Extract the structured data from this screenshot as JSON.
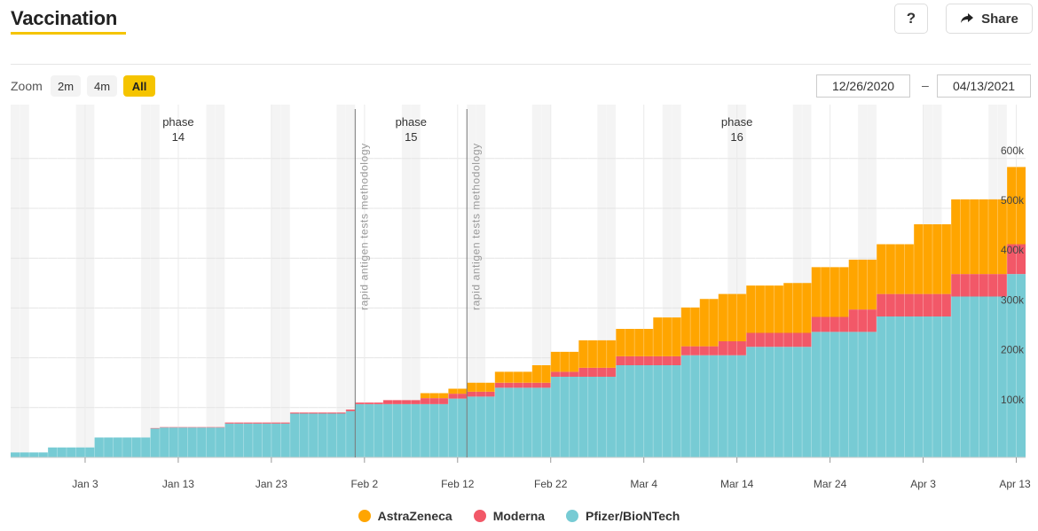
{
  "header": {
    "title": "Vaccination",
    "help_label": "?",
    "share_label": "Share"
  },
  "controls": {
    "zoom_label": "Zoom",
    "zoom_options": [
      "2m",
      "4m",
      "All"
    ],
    "zoom_selected": "All",
    "date_from": "12/26/2020",
    "date_separator": "–",
    "date_to": "04/13/2021"
  },
  "colors": {
    "astrazeneca": "#ffa500",
    "moderna": "#f25868",
    "pfizer": "#77cbd4",
    "accent": "#f5c400"
  },
  "chart_data": {
    "type": "area",
    "stacked": true,
    "step": true,
    "x_start": "2020-12-26",
    "x_end": "2021-04-13",
    "x_ticks": [
      {
        "date": "2021-01-03",
        "label": "Jan 3"
      },
      {
        "date": "2021-01-13",
        "label": "Jan 13"
      },
      {
        "date": "2021-01-23",
        "label": "Jan 23"
      },
      {
        "date": "2021-02-02",
        "label": "Feb 2"
      },
      {
        "date": "2021-02-12",
        "label": "Feb 12"
      },
      {
        "date": "2021-02-22",
        "label": "Feb 22"
      },
      {
        "date": "2021-03-04",
        "label": "Mar 4"
      },
      {
        "date": "2021-03-14",
        "label": "Mar 14"
      },
      {
        "date": "2021-03-24",
        "label": "Mar 24"
      },
      {
        "date": "2021-04-03",
        "label": "Apr 3"
      },
      {
        "date": "2021-04-13",
        "label": "Apr 13"
      }
    ],
    "y_ticks": [
      {
        "value": 100000,
        "label": "100k"
      },
      {
        "value": 200000,
        "label": "200k"
      },
      {
        "value": 300000,
        "label": "300k"
      },
      {
        "value": 400000,
        "label": "400k"
      },
      {
        "value": 500000,
        "label": "500k"
      },
      {
        "value": 600000,
        "label": "600k"
      }
    ],
    "ylim": [
      0,
      700000
    ],
    "grid": true,
    "legend_position": "bottom",
    "phases": [
      {
        "label": "phase",
        "number": "14",
        "center_date": "2021-01-13"
      },
      {
        "label": "phase",
        "number": "15",
        "center_date": "2021-02-07"
      },
      {
        "label": "phase",
        "number": "16",
        "center_date": "2021-03-14"
      }
    ],
    "markers": [
      {
        "date": "2021-02-01",
        "label": "rapid antigen tests methodology"
      },
      {
        "date": "2021-02-13",
        "label": "rapid antigen tests methodology"
      }
    ],
    "series": [
      {
        "name": "Pfizer/BioNTech",
        "color": "#77cbd4",
        "points": [
          {
            "date": "2020-12-26",
            "value": 10000
          },
          {
            "date": "2020-12-30",
            "value": 20000
          },
          {
            "date": "2021-01-04",
            "value": 40000
          },
          {
            "date": "2021-01-10",
            "value": 58000
          },
          {
            "date": "2021-01-11",
            "value": 60000
          },
          {
            "date": "2021-01-18",
            "value": 68000
          },
          {
            "date": "2021-01-25",
            "value": 88000
          },
          {
            "date": "2021-01-31",
            "value": 93000
          },
          {
            "date": "2021-02-01",
            "value": 107000
          },
          {
            "date": "2021-02-04",
            "value": 107000
          },
          {
            "date": "2021-02-08",
            "value": 107000
          },
          {
            "date": "2021-02-11",
            "value": 118000
          },
          {
            "date": "2021-02-13",
            "value": 122000
          },
          {
            "date": "2021-02-16",
            "value": 140000
          },
          {
            "date": "2021-02-20",
            "value": 140000
          },
          {
            "date": "2021-02-22",
            "value": 162000
          },
          {
            "date": "2021-02-25",
            "value": 162000
          },
          {
            "date": "2021-03-01",
            "value": 185000
          },
          {
            "date": "2021-03-05",
            "value": 185000
          },
          {
            "date": "2021-03-08",
            "value": 205000
          },
          {
            "date": "2021-03-12",
            "value": 205000
          },
          {
            "date": "2021-03-15",
            "value": 222000
          },
          {
            "date": "2021-03-19",
            "value": 222000
          },
          {
            "date": "2021-03-22",
            "value": 252000
          },
          {
            "date": "2021-03-26",
            "value": 252000
          },
          {
            "date": "2021-03-29",
            "value": 283000
          },
          {
            "date": "2021-04-02",
            "value": 283000
          },
          {
            "date": "2021-04-06",
            "value": 323000
          },
          {
            "date": "2021-04-12",
            "value": 368000
          }
        ]
      },
      {
        "name": "Moderna",
        "color": "#f25868",
        "points": [
          {
            "date": "2020-12-26",
            "value": 0
          },
          {
            "date": "2021-01-10",
            "value": 1000
          },
          {
            "date": "2021-01-18",
            "value": 2000
          },
          {
            "date": "2021-01-25",
            "value": 2000
          },
          {
            "date": "2021-01-31",
            "value": 3000
          },
          {
            "date": "2021-02-01",
            "value": 3000
          },
          {
            "date": "2021-02-04",
            "value": 8000
          },
          {
            "date": "2021-02-08",
            "value": 12000
          },
          {
            "date": "2021-02-11",
            "value": 10000
          },
          {
            "date": "2021-02-13",
            "value": 10000
          },
          {
            "date": "2021-02-16",
            "value": 10000
          },
          {
            "date": "2021-02-20",
            "value": 10000
          },
          {
            "date": "2021-02-22",
            "value": 10000
          },
          {
            "date": "2021-02-25",
            "value": 18000
          },
          {
            "date": "2021-03-01",
            "value": 18000
          },
          {
            "date": "2021-03-05",
            "value": 18000
          },
          {
            "date": "2021-03-08",
            "value": 18000
          },
          {
            "date": "2021-03-12",
            "value": 28000
          },
          {
            "date": "2021-03-15",
            "value": 28000
          },
          {
            "date": "2021-03-19",
            "value": 28000
          },
          {
            "date": "2021-03-22",
            "value": 30000
          },
          {
            "date": "2021-03-26",
            "value": 45000
          },
          {
            "date": "2021-03-29",
            "value": 45000
          },
          {
            "date": "2021-04-02",
            "value": 45000
          },
          {
            "date": "2021-04-06",
            "value": 45000
          },
          {
            "date": "2021-04-12",
            "value": 60000
          }
        ]
      },
      {
        "name": "AstraZeneca",
        "color": "#ffa500",
        "points": [
          {
            "date": "2020-12-26",
            "value": 0
          },
          {
            "date": "2021-02-04",
            "value": 0
          },
          {
            "date": "2021-02-08",
            "value": 10000
          },
          {
            "date": "2021-02-11",
            "value": 10000
          },
          {
            "date": "2021-02-13",
            "value": 18000
          },
          {
            "date": "2021-02-16",
            "value": 22000
          },
          {
            "date": "2021-02-20",
            "value": 35000
          },
          {
            "date": "2021-02-22",
            "value": 40000
          },
          {
            "date": "2021-02-25",
            "value": 55000
          },
          {
            "date": "2021-03-01",
            "value": 55000
          },
          {
            "date": "2021-03-05",
            "value": 78000
          },
          {
            "date": "2021-03-08",
            "value": 78000
          },
          {
            "date": "2021-03-10",
            "value": 95000
          },
          {
            "date": "2021-03-12",
            "value": 95000
          },
          {
            "date": "2021-03-15",
            "value": 95000
          },
          {
            "date": "2021-03-19",
            "value": 100000
          },
          {
            "date": "2021-03-22",
            "value": 100000
          },
          {
            "date": "2021-03-26",
            "value": 100000
          },
          {
            "date": "2021-03-29",
            "value": 100000
          },
          {
            "date": "2021-04-02",
            "value": 140000
          },
          {
            "date": "2021-04-06",
            "value": 150000
          },
          {
            "date": "2021-04-12",
            "value": 155000
          }
        ]
      }
    ],
    "legend": [
      {
        "name": "AstraZeneca",
        "color": "#ffa500"
      },
      {
        "name": "Moderna",
        "color": "#f25868"
      },
      {
        "name": "Pfizer/BioNTech",
        "color": "#77cbd4"
      }
    ]
  }
}
